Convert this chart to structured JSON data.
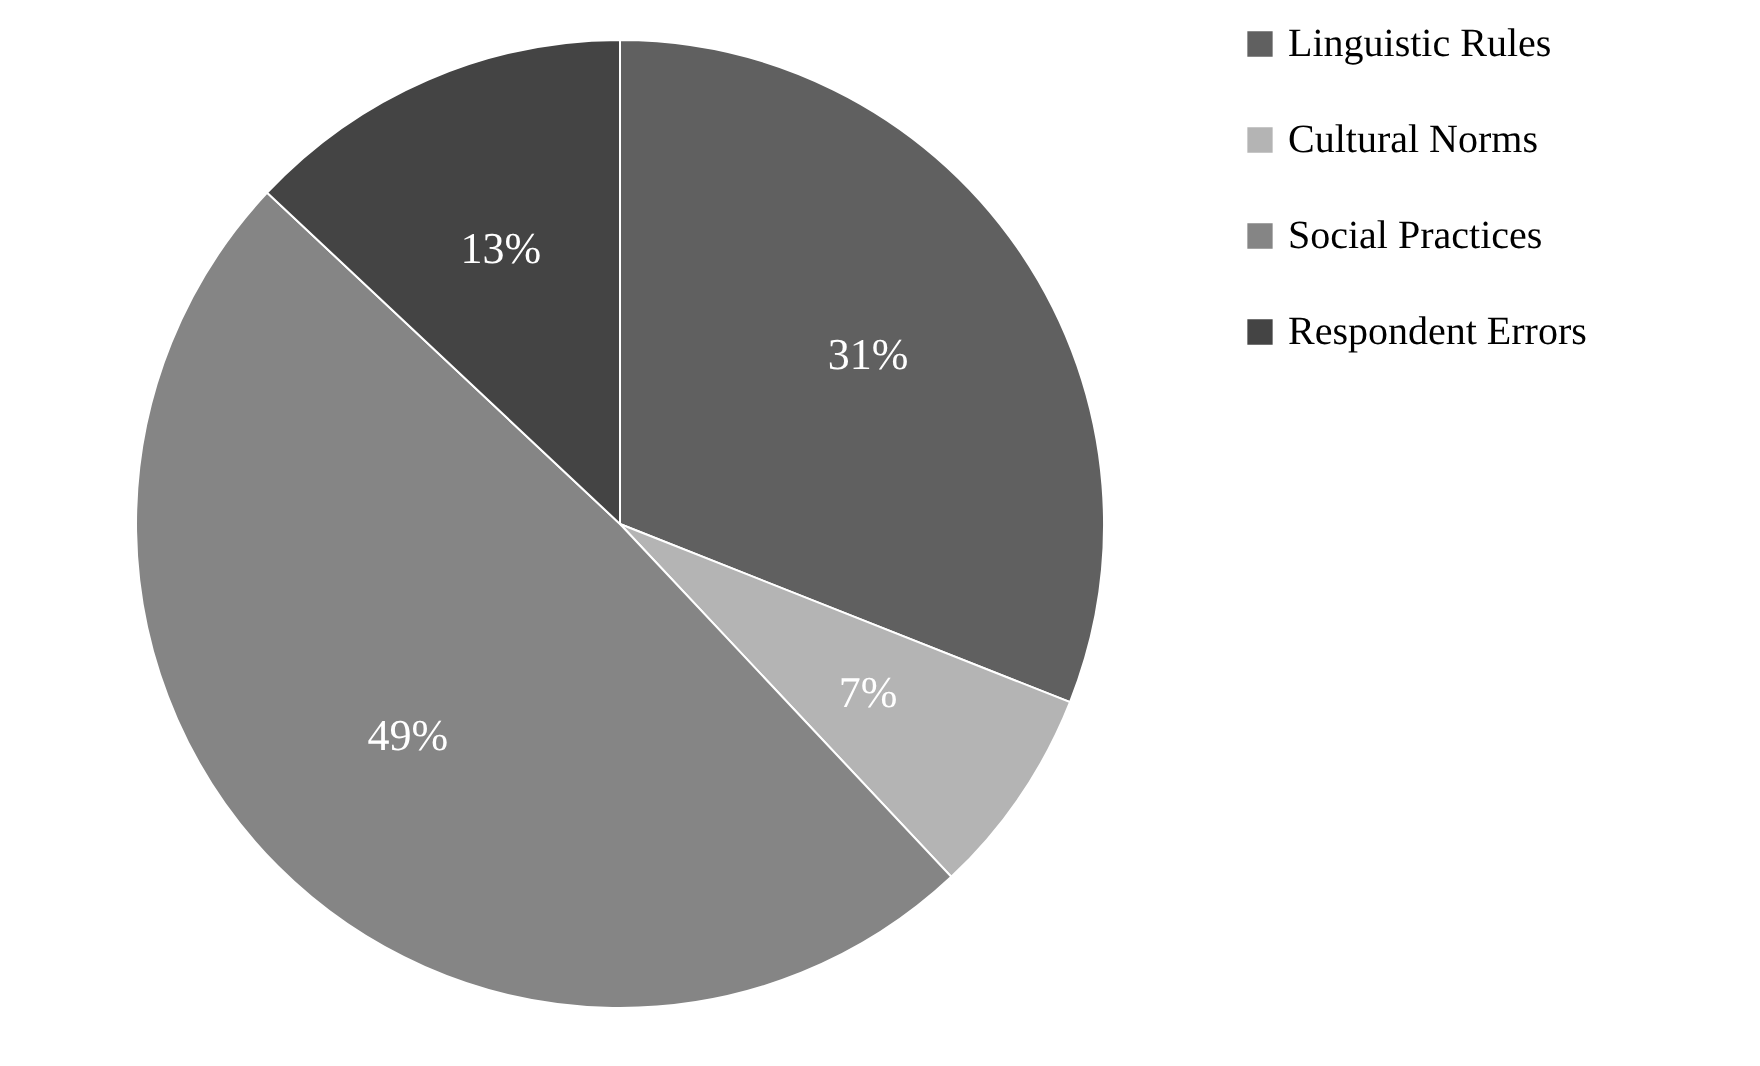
{
  "chart_data": {
    "type": "pie",
    "categories": [
      "Linguistic Rules",
      "Cultural Norms",
      "Social Practices",
      "Respondent Errors"
    ],
    "values": [
      31,
      7,
      49,
      13
    ],
    "colors": [
      "#606060",
      "#b4b4b4",
      "#858585",
      "#444444"
    ],
    "value_labels": [
      "31%",
      "7%",
      "49%",
      "13%"
    ],
    "legend": "right"
  }
}
